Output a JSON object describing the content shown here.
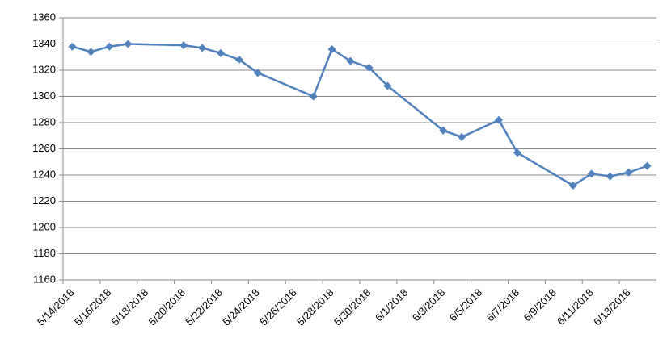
{
  "chart_data": {
    "type": "line",
    "x": [
      "5/14/2018",
      "5/15/2018",
      "5/16/2018",
      "5/17/2018",
      "5/20/2018",
      "5/21/2018",
      "5/22/2018",
      "5/23/2018",
      "5/24/2018",
      "5/27/2018",
      "5/28/2018",
      "5/29/2018",
      "5/30/2018",
      "5/31/2018",
      "6/3/2018",
      "6/4/2018",
      "6/6/2018",
      "6/7/2018",
      "6/10/2018",
      "6/11/2018",
      "6/12/2018",
      "6/13/2018",
      "6/14/2018"
    ],
    "series": [
      {
        "color": "#4f81bd",
        "values": [
          1338,
          1334,
          1338,
          1340,
          1339,
          1337,
          1333,
          1328,
          1318,
          1300,
          1336,
          1327,
          1322,
          1308,
          1274,
          1269,
          1282,
          1257,
          1232,
          1241,
          1239,
          1242,
          1247
        ]
      }
    ],
    "xlim": [
      "5/14/2018",
      "6/15/2018"
    ],
    "xticks": [
      "5/14/2018",
      "5/16/2018",
      "5/18/2018",
      "5/20/2018",
      "5/22/2018",
      "5/24/2018",
      "5/26/2018",
      "5/28/2018",
      "5/30/2018",
      "6/1/2018",
      "6/3/2018",
      "6/5/2018",
      "6/7/2018",
      "6/9/2018",
      "6/11/2018",
      "6/13/2018"
    ],
    "ylim": [
      1160,
      1360
    ],
    "yticks": [
      1160,
      1180,
      1200,
      1220,
      1240,
      1260,
      1280,
      1300,
      1320,
      1340,
      1360
    ],
    "grid": true
  }
}
